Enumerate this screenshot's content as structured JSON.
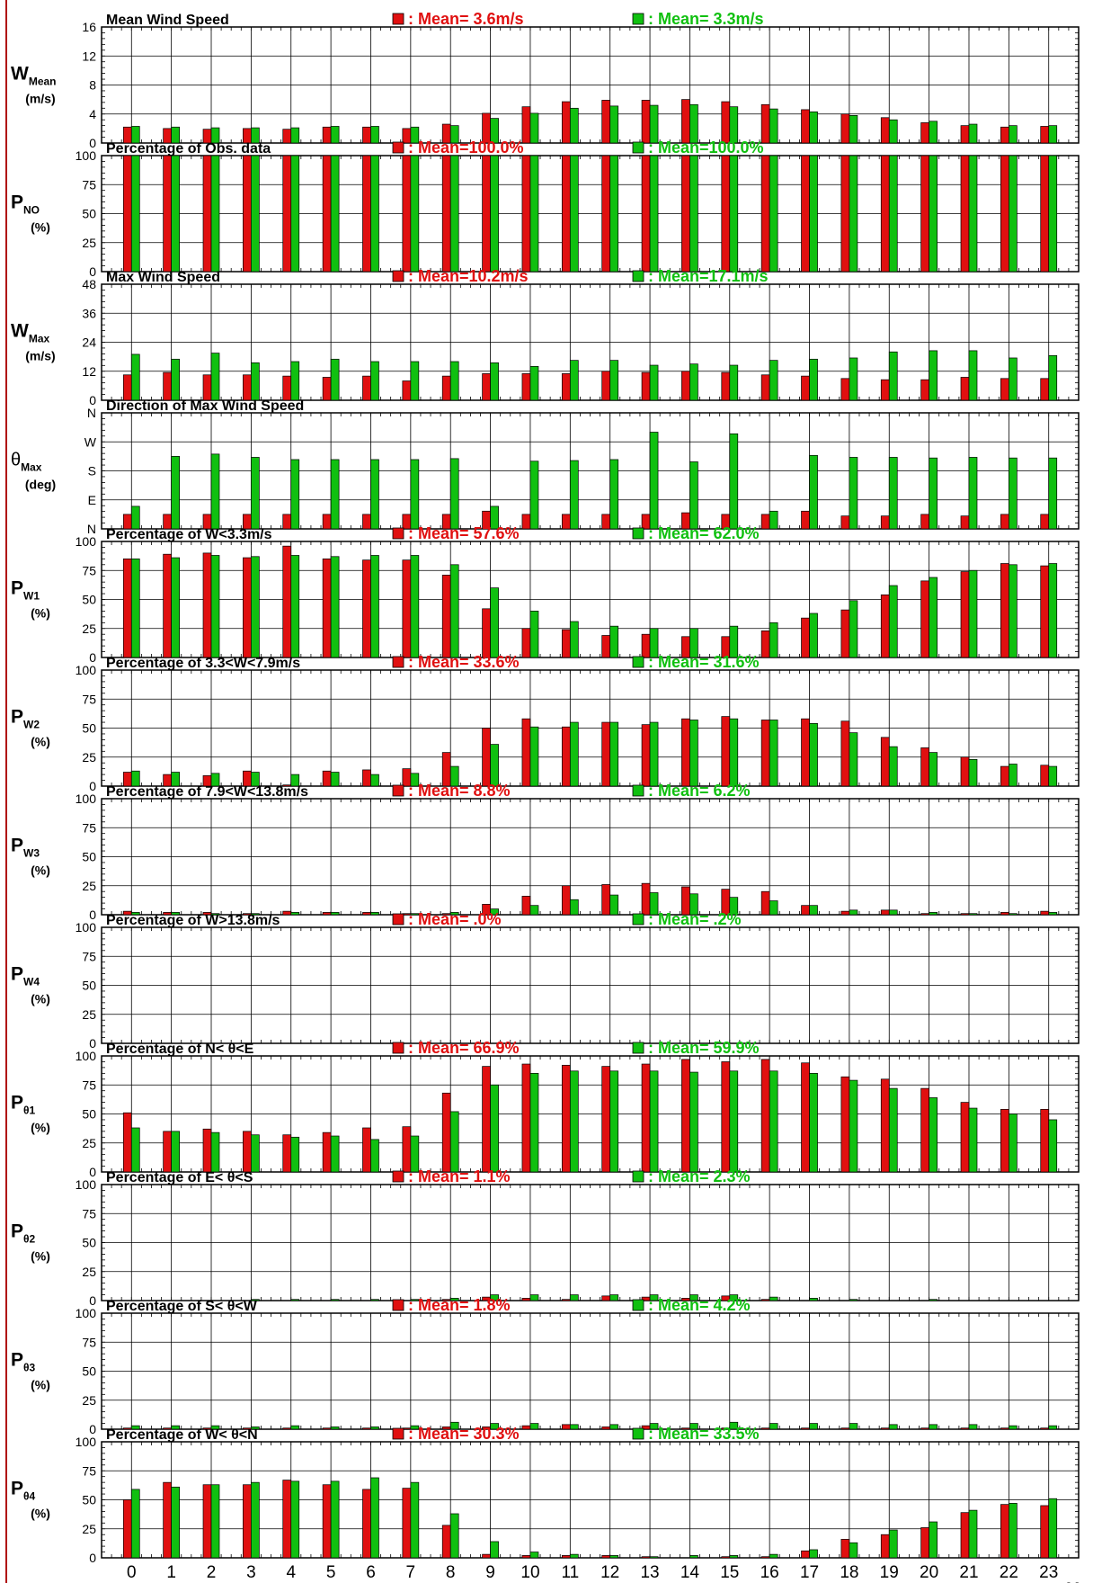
{
  "colors": {
    "red": "#e01010",
    "green": "#10c010",
    "meanRed": "#e01010",
    "meanGreen": "#10c010"
  },
  "hours": [
    "0",
    "1",
    "2",
    "3",
    "4",
    "5",
    "6",
    "7",
    "8",
    "9",
    "10",
    "11",
    "12",
    "13",
    "14",
    "15",
    "16",
    "17",
    "18",
    "19",
    "20",
    "21",
    "22",
    "23"
  ],
  "xaxis_label": "Ho",
  "chart_data": [
    {
      "type": "bar",
      "title": "Mean Wind Speed",
      "ylabel_main": "W",
      "ylabel_sub": "Mean",
      "ylabel_unit": "(m/s)",
      "yticks": [
        "0",
        "4",
        "8",
        "12",
        "16"
      ],
      "ylim": [
        0,
        16
      ],
      "legend_red": ": Mean= 3.6m/s",
      "legend_green": ": Mean= 3.3m/s",
      "red": [
        2.2,
        2.0,
        1.9,
        2.0,
        1.9,
        2.2,
        2.2,
        2.0,
        2.6,
        4.1,
        5.0,
        5.7,
        5.9,
        5.9,
        6.0,
        5.7,
        5.3,
        4.6,
        4.0,
        3.5,
        2.8,
        2.4,
        2.2,
        2.3
      ],
      "green": [
        2.3,
        2.2,
        2.1,
        2.1,
        2.1,
        2.3,
        2.3,
        2.2,
        2.4,
        3.4,
        4.1,
        4.8,
        5.1,
        5.2,
        5.3,
        5.0,
        4.7,
        4.3,
        3.8,
        3.2,
        3.0,
        2.6,
        2.4,
        2.4
      ]
    },
    {
      "type": "bar",
      "title": "Percentage of Obs. data",
      "ylabel_main": "P",
      "ylabel_sub": "NO",
      "ylabel_unit": "(%)",
      "yticks": [
        "0",
        "25",
        "50",
        "75",
        "100"
      ],
      "ylim": [
        0,
        100
      ],
      "legend_red": ": Mean=100.0%",
      "legend_green": ": Mean=100.0%",
      "red": [
        100,
        100,
        100,
        100,
        100,
        100,
        100,
        100,
        100,
        100,
        100,
        100,
        100,
        100,
        100,
        100,
        100,
        100,
        100,
        100,
        100,
        100,
        100,
        100
      ],
      "green": [
        100,
        100,
        100,
        100,
        100,
        100,
        100,
        100,
        100,
        100,
        100,
        100,
        100,
        100,
        100,
        100,
        100,
        100,
        100,
        100,
        100,
        100,
        100,
        100
      ]
    },
    {
      "type": "bar",
      "title": "Max Wind Speed",
      "ylabel_main": "W",
      "ylabel_sub": "Max",
      "ylabel_unit": "(m/s)",
      "yticks": [
        "0",
        "12",
        "24",
        "36",
        "48"
      ],
      "ylim": [
        0,
        48
      ],
      "legend_red": ": Mean=10.2m/s",
      "legend_green": ": Mean=17.1m/s",
      "red": [
        10.5,
        11.5,
        10.5,
        10.5,
        10,
        9.5,
        10,
        8,
        10,
        11,
        11,
        11,
        12,
        11.5,
        12,
        11.5,
        10.5,
        10,
        9,
        8.5,
        8.5,
        9.5,
        9,
        9
      ],
      "green": [
        19,
        17,
        19.5,
        15.5,
        16,
        17,
        16,
        16,
        16,
        15.5,
        14,
        16.5,
        16.5,
        14.5,
        15,
        14.5,
        16.5,
        17,
        17.5,
        20,
        20.5,
        20.5,
        17.5,
        18.5
      ]
    },
    {
      "type": "bar",
      "title": "Direction of Max Wind Speed",
      "ylabel_main": "θ",
      "ylabel_sub": "Max",
      "ylabel_unit": "(deg)",
      "yticks": [
        "N",
        "E",
        "S",
        "W",
        "N"
      ],
      "ylim": [
        0,
        360
      ],
      "legend_red": "",
      "legend_green": "",
      "red": [
        45,
        45,
        45,
        45,
        45,
        45,
        45,
        45,
        45,
        55,
        45,
        45,
        45,
        45,
        50,
        45,
        45,
        55,
        40,
        40,
        45,
        40,
        45,
        45
      ],
      "green": [
        70,
        225,
        232,
        222,
        215,
        215,
        215,
        215,
        218,
        70,
        210,
        212,
        215,
        300,
        208,
        295,
        55,
        228,
        222,
        222,
        220,
        222,
        220,
        220
      ]
    },
    {
      "type": "bar",
      "title": "Percentage of W<3.3m/s",
      "ylabel_main": "P",
      "ylabel_sub": "W1",
      "ylabel_unit": "(%)",
      "yticks": [
        "0",
        "25",
        "50",
        "75",
        "100"
      ],
      "ylim": [
        0,
        100
      ],
      "legend_red": ": Mean= 57.6%",
      "legend_green": ": Mean= 62.0%",
      "red": [
        85,
        89,
        90,
        86,
        96,
        85,
        84,
        84,
        71,
        42,
        25,
        24,
        19,
        20,
        18,
        18,
        23,
        34,
        41,
        54,
        66,
        74,
        81,
        79
      ],
      "green": [
        85,
        86,
        88,
        87,
        88,
        87,
        88,
        88,
        80,
        60,
        40,
        31,
        27,
        25,
        25,
        27,
        30,
        38,
        49,
        62,
        69,
        75,
        80,
        81
      ]
    },
    {
      "type": "bar",
      "title": "Percentage of 3.3<W<7.9m/s",
      "ylabel_main": "P",
      "ylabel_sub": "W2",
      "ylabel_unit": "(%)",
      "yticks": [
        "0",
        "25",
        "50",
        "75",
        "100"
      ],
      "ylim": [
        0,
        100
      ],
      "legend_red": ": Mean= 33.6%",
      "legend_green": ": Mean= 31.6%",
      "red": [
        12,
        10,
        9,
        13,
        1,
        13,
        14,
        15,
        29,
        50,
        58,
        51,
        55,
        53,
        58,
        60,
        57,
        58,
        56,
        42,
        33,
        25,
        17,
        18
      ],
      "green": [
        13,
        12,
        11,
        12,
        10,
        12,
        10,
        11,
        17,
        36,
        51,
        55,
        55,
        55,
        57,
        58,
        57,
        54,
        46,
        34,
        29,
        23,
        19,
        17
      ]
    },
    {
      "type": "bar",
      "title": "Percentage of 7.9<W<13.8m/s",
      "ylabel_main": "P",
      "ylabel_sub": "W3",
      "ylabel_unit": "(%)",
      "yticks": [
        "0",
        "25",
        "50",
        "75",
        "100"
      ],
      "ylim": [
        0,
        100
      ],
      "legend_red": ": Mean=  8.8%",
      "legend_green": ": Mean=  6.2%",
      "red": [
        3,
        2,
        2,
        1,
        3,
        2,
        2,
        1,
        1,
        9,
        16,
        25,
        26,
        27,
        24,
        22,
        20,
        8,
        3,
        4,
        1,
        1,
        2,
        3
      ],
      "green": [
        2,
        2,
        1,
        1,
        2,
        2,
        2,
        1,
        2,
        5,
        8,
        13,
        17,
        19,
        18,
        15,
        12,
        8,
        4,
        4,
        2,
        1,
        1,
        2
      ]
    },
    {
      "type": "bar",
      "title": "Percentage of W>13.8m/s",
      "ylabel_main": "P",
      "ylabel_sub": "W4",
      "ylabel_unit": "(%)",
      "yticks": [
        "0",
        "25",
        "50",
        "75",
        "100"
      ],
      "ylim": [
        0,
        100
      ],
      "legend_red": ": Mean=   .0%",
      "legend_green": ": Mean=   .2%",
      "red": [
        0,
        0,
        0,
        0,
        0,
        0,
        0,
        0,
        0,
        0,
        0,
        0,
        0,
        0,
        0,
        0,
        0,
        0,
        0,
        0,
        0,
        0,
        0,
        0
      ],
      "green": [
        0,
        0,
        0,
        0,
        0,
        0,
        0,
        0,
        0,
        0,
        0,
        0,
        0,
        0,
        0,
        0,
        0,
        0,
        0,
        0,
        0,
        0,
        0,
        0
      ]
    },
    {
      "type": "bar",
      "title": "Percentage of N< θ<E",
      "ylabel_main": "P",
      "ylabel_sub": "θ1",
      "ylabel_unit": "(%)",
      "yticks": [
        "0",
        "25",
        "50",
        "75",
        "100"
      ],
      "ylim": [
        0,
        100
      ],
      "legend_red": ": Mean= 66.9%",
      "legend_green": ": Mean= 59.9%",
      "red": [
        51,
        35,
        37,
        35,
        32,
        34,
        38,
        39,
        68,
        91,
        93,
        92,
        91,
        93,
        97,
        95,
        97,
        94,
        82,
        80,
        72,
        60,
        54,
        54
      ],
      "green": [
        38,
        35,
        34,
        32,
        30,
        31,
        28,
        31,
        52,
        75,
        85,
        87,
        87,
        87,
        86,
        87,
        87,
        85,
        79,
        72,
        64,
        55,
        50,
        45
      ]
    },
    {
      "type": "bar",
      "title": "Percentage of E< θ<S",
      "ylabel_main": "P",
      "ylabel_sub": "θ2",
      "ylabel_unit": "(%)",
      "yticks": [
        "0",
        "25",
        "50",
        "75",
        "100"
      ],
      "ylim": [
        0,
        100
      ],
      "legend_red": ": Mean=  1.1%",
      "legend_green": ": Mean=  2.3%",
      "red": [
        0,
        0,
        0,
        0,
        0,
        0,
        0,
        0,
        1,
        3,
        2,
        1,
        4,
        3,
        2,
        4,
        1,
        0,
        0,
        0,
        0,
        0,
        0,
        0
      ],
      "green": [
        0,
        0,
        0,
        1,
        1,
        1,
        1,
        1,
        2,
        5,
        5,
        5,
        5,
        5,
        5,
        5,
        3,
        2,
        1,
        0,
        1,
        0,
        0,
        0
      ]
    },
    {
      "type": "bar",
      "title": "Percentage of S< θ<W",
      "ylabel_main": "P",
      "ylabel_sub": "θ3",
      "ylabel_unit": "(%)",
      "yticks": [
        "0",
        "25",
        "50",
        "75",
        "100"
      ],
      "ylim": [
        0,
        100
      ],
      "legend_red": ": Mean=  1.8%",
      "legend_green": ": Mean=  4.2%",
      "red": [
        1,
        1,
        1,
        1,
        1,
        1,
        1,
        1,
        2,
        2,
        3,
        4,
        2,
        3,
        1,
        1,
        1,
        1,
        1,
        1,
        1,
        1,
        1,
        1
      ],
      "green": [
        3,
        3,
        3,
        2,
        3,
        2,
        2,
        3,
        6,
        5,
        5,
        4,
        4,
        5,
        5,
        6,
        5,
        5,
        5,
        4,
        4,
        4,
        3,
        3
      ]
    },
    {
      "type": "bar",
      "title": "Percentage of W< θ<N",
      "ylabel_main": "P",
      "ylabel_sub": "θ4",
      "ylabel_unit": "(%)",
      "yticks": [
        "0",
        "25",
        "50",
        "75",
        "100"
      ],
      "ylim": [
        0,
        100
      ],
      "legend_red": ": Mean= 30.3%",
      "legend_green": ": Mean= 33.5%",
      "red": [
        50,
        65,
        63,
        63,
        67,
        63,
        59,
        60,
        28,
        3,
        2,
        2,
        2,
        1,
        0,
        1,
        1,
        6,
        16,
        20,
        26,
        39,
        46,
        45
      ],
      "green": [
        59,
        61,
        63,
        65,
        66,
        66,
        69,
        65,
        38,
        14,
        5,
        3,
        2,
        1,
        2,
        2,
        3,
        7,
        13,
        24,
        31,
        41,
        47,
        51
      ]
    }
  ]
}
